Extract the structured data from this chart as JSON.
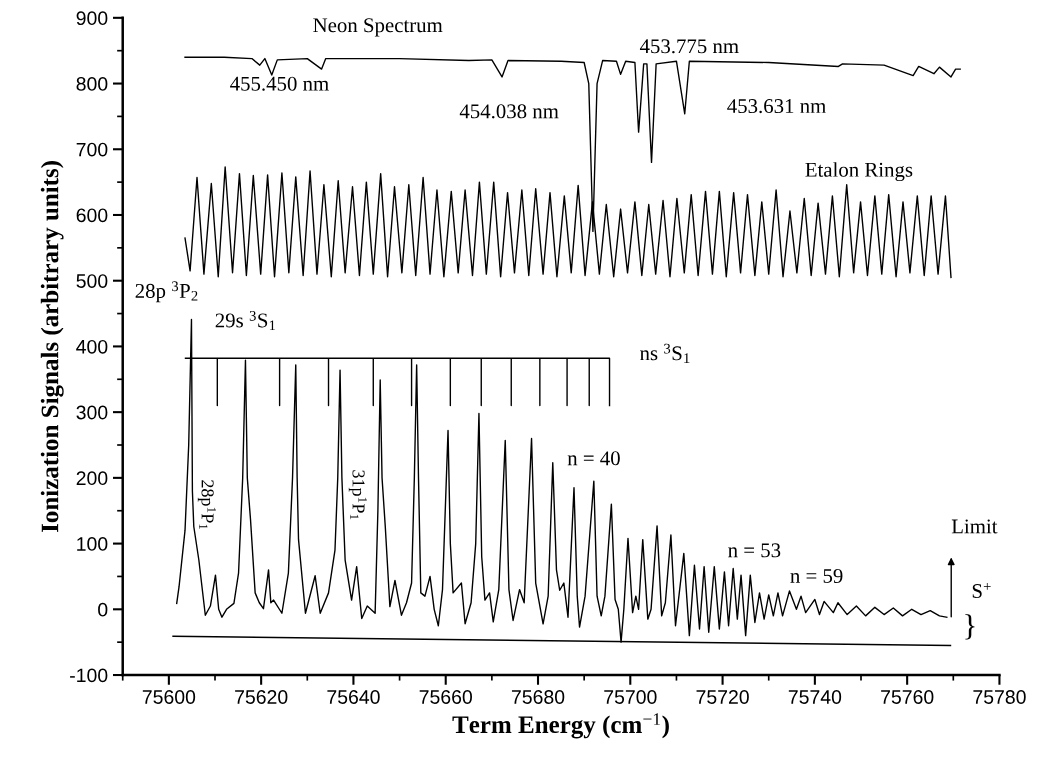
{
  "chart_data": {
    "type": "line",
    "xlabel": "Term Energy (cm$^{−1}$)",
    "ylabel": "Ionization Signals (arbitrary units)",
    "xlim": [
      75590,
      75780
    ],
    "ylim": [
      -100,
      900
    ],
    "xticks": [
      75600,
      75620,
      75640,
      75660,
      75680,
      75700,
      75720,
      75740,
      75760,
      75780
    ],
    "yticks": [
      -100,
      0,
      100,
      200,
      300,
      400,
      500,
      600,
      700,
      800,
      900
    ],
    "series": [
      {
        "color": "#000000",
        "x": [
          75603.5,
          75612,
          75618,
          75619.7,
          75620.8,
          75622.3,
          75623.5,
          75630,
          75633.1,
          75634,
          75650,
          75665,
          75670,
          75672.2,
          75673.5,
          75685,
          75690,
          75691,
          75691.9,
          75692.8,
          75694,
          75697,
          75697.9,
          75699,
          75701,
          75701.8,
          75702.9,
          75703.6,
          75704.6,
          75705.6,
          75710,
          75711.8,
          75712.8,
          75730,
          75745.1,
          75746,
          75755,
          75761.3,
          75762.5,
          75765.8,
          75767,
          75769.5,
          75770.5,
          75771.5
        ],
        "values": [
          840,
          840,
          838,
          828,
          838,
          813,
          836,
          838,
          822,
          838,
          838,
          835,
          836,
          810,
          835,
          834,
          832,
          800,
          575,
          800,
          835,
          834,
          814,
          834,
          832,
          726,
          830,
          830,
          680,
          830,
          834,
          754,
          834,
          832,
          826,
          830,
          828,
          812,
          826,
          815,
          825,
          810,
          822,
          822
        ]
      },
      {
        "color": "#000000",
        "x": [
          75603.5,
          75604.6,
          75606.1,
          75607.6,
          75609.2,
          75610.7,
          75612.2,
          75613.8,
          75615.3,
          75616.8,
          75618.3,
          75619.9,
          75621.4,
          75622.9,
          75624.5,
          75626.0,
          75627.5,
          75629.1,
          75630.6,
          75632.1,
          75633.6,
          75635.2,
          75636.7,
          75638.2,
          75639.8,
          75641.3,
          75642.8,
          75644.3,
          75645.9,
          75647.4,
          75648.9,
          75650.5,
          75652.0,
          75653.5,
          75655.1,
          75656.6,
          75658.1,
          75659.6,
          75661.2,
          75662.7,
          75664.2,
          75665.8,
          75667.3,
          75668.8,
          75670.4,
          75671.9,
          75673.4,
          75674.9,
          75676.5,
          75678.0,
          75679.5,
          75681.1,
          75682.6,
          75684.1,
          75685.7,
          75687.2,
          75688.7,
          75690.2,
          75691.8,
          75693.3,
          75694.8,
          75696.4,
          75697.9,
          75699.4,
          75701.0,
          75702.5,
          75704.0,
          75705.5,
          75707.1,
          75708.6,
          75710.1,
          75711.7,
          75713.2,
          75714.7,
          75716.3,
          75717.8,
          75719.3,
          75720.8,
          75722.4,
          75723.9,
          75725.4,
          75727.0,
          75728.5,
          75730.0,
          75731.6,
          75733.1,
          75734.6,
          75736.1,
          75737.7,
          75739.2,
          75740.7,
          75742.3,
          75743.8,
          75745.3,
          75746.9,
          75748.4,
          75749.9,
          75751.4,
          75753.0,
          75754.5,
          75756.0,
          75757.6,
          75759.1,
          75760.6,
          75762.2,
          75763.7,
          75765.2,
          75766.7,
          75768.3,
          75769.5
        ],
        "values": [
          565,
          515,
          657,
          510,
          648,
          506,
          673,
          512,
          663,
          508,
          660,
          510,
          661,
          506,
          664,
          512,
          658,
          508,
          667,
          510,
          646,
          506,
          652,
          512,
          643,
          508,
          650,
          510,
          663,
          506,
          643,
          512,
          646,
          508,
          657,
          510,
          638,
          506,
          636,
          512,
          638,
          508,
          650,
          510,
          650,
          506,
          634,
          512,
          638,
          508,
          640,
          510,
          634,
          506,
          629,
          512,
          645,
          508,
          620,
          510,
          616,
          506,
          609,
          512,
          620,
          508,
          616,
          510,
          622,
          506,
          625,
          512,
          631,
          508,
          636,
          510,
          636,
          506,
          634,
          512,
          631,
          508,
          620,
          510,
          638,
          506,
          606,
          512,
          625,
          508,
          618,
          510,
          629,
          506,
          646,
          512,
          620,
          508,
          629,
          510,
          631,
          506,
          620,
          512,
          629,
          508,
          629,
          510,
          629,
          505
        ]
      },
      {
        "color": "#000000",
        "x": [
          75601.7,
          75602.2,
          75603.5,
          75604.3,
          75604.9,
          75605.1,
          75605.4,
          75606.5,
          75607.9,
          75609.0,
          75610.1,
          75610.8,
          75611.5,
          75612.5,
          75614.1,
          75615.1,
          75616.0,
          75616.6,
          75617.0,
          75617.7,
          75618.7,
          75619.6,
          75620.5,
          75621.6,
          75622.1,
          75622.7,
          75624.5,
          75625.9,
          75626.8,
          75627.5,
          75627.8,
          75628.1,
          75629.6,
          75631.7,
          75632.8,
          75634.6,
          75636.0,
          75636.6,
          75637.1,
          75637.5,
          75638.2,
          75639.6,
          75640.7,
          75641.8,
          75643.0,
          75644.7,
          75645.3,
          75645.8,
          75646.2,
          75646.9,
          75647.9,
          75649.0,
          75650.4,
          75651.5,
          75652.6,
          75653.2,
          75653.7,
          75654.1,
          75654.6,
          75655.5,
          75656.6,
          75657.5,
          75658.4,
          75659.3,
          75660.5,
          75661.0,
          75661.6,
          75663.4,
          75664.2,
          75665.5,
          75666.5,
          75667.2,
          75667.8,
          75668.5,
          75669.5,
          75670.3,
          75671.5,
          75672.9,
          75673.7,
          75674.6,
          75676.0,
          75677.0,
          75678.6,
          75679.5,
          75681.1,
          75682.2,
          75683.2,
          75684.0,
          75684.7,
          75685.6,
          75686.5,
          75687.8,
          75688.5,
          75689.0,
          75690.2,
          75692.1,
          75692.8,
          75693.7,
          75694.5,
          75695.9,
          75696.7,
          75697.4,
          75698.0,
          75698.6,
          75699.5,
          75700.5,
          75701.2,
          75701.8,
          75702.7,
          75703.8,
          75704.5,
          75705.8,
          75706.8,
          75707.6,
          75708.8,
          75709.8,
          75711.6,
          75712.8,
          75713.9,
          75715.0,
          75716.0,
          75717.0,
          75718.2,
          75719.3,
          75720.4,
          75721.3,
          75722.3,
          75723.2,
          75724.0,
          75725.0,
          75726.0,
          75727.0,
          75728.0,
          75729.0,
          75730.0,
          75731.0,
          75732.0,
          75733.0,
          75734.5,
          75736.0,
          75737.0,
          75738.0,
          75740.0,
          75741.0,
          75742.0,
          75744.0,
          75745.0,
          75747.0,
          75749.0,
          75751.0,
          75753.0,
          75755.0,
          75757.0,
          75759.0,
          75761.0,
          75763.0,
          75765.0,
          75767.0,
          75768.6
        ],
        "values": [
          9,
          34,
          120,
          250,
          441,
          180,
          126,
          75,
          -9,
          5,
          52,
          0,
          -12,
          0,
          9,
          55,
          200,
          379,
          200,
          136,
          25,
          10,
          1,
          60,
          10,
          14,
          -6,
          55,
          200,
          372,
          200,
          106,
          -6,
          51,
          -6,
          25,
          90,
          200,
          364,
          200,
          75,
          14,
          65,
          -14,
          5,
          -6,
          150,
          349,
          200,
          126,
          4,
          44,
          -9,
          10,
          40,
          200,
          372,
          200,
          25,
          20,
          50,
          0,
          -25,
          30,
          272,
          100,
          25,
          40,
          -22,
          10,
          100,
          298,
          80,
          14,
          25,
          -19,
          30,
          257,
          30,
          -17,
          30,
          10,
          260,
          40,
          -22,
          20,
          223,
          60,
          29,
          40,
          -12,
          185,
          20,
          -27,
          20,
          195,
          20,
          -10,
          20,
          160,
          15,
          0,
          -50,
          0,
          108,
          -5,
          20,
          0,
          106,
          -15,
          0,
          127,
          -10,
          10,
          113,
          -25,
          85,
          -40,
          67,
          -30,
          65,
          -35,
          65,
          -30,
          57,
          -25,
          62,
          -15,
          52,
          -40,
          52,
          -20,
          25,
          -15,
          22,
          -10,
          25,
          -10,
          28,
          0,
          20,
          -5,
          15,
          -8,
          12,
          -5,
          10,
          -8,
          5,
          -10,
          3,
          -8,
          2,
          -10,
          0,
          -8,
          -2,
          -10,
          -12
        ]
      },
      {
        "color": "#000000",
        "x": [
          75603.6,
          75610.5,
          75610.5,
          75610.5,
          75624.0,
          75624.0,
          75624.0,
          75634.6,
          75634.6,
          75634.6,
          75644.3,
          75644.3,
          75644.3,
          75652.6,
          75652.6,
          75652.6,
          75661.0,
          75661.0,
          75661.0,
          75667.7,
          75667.7,
          75667.7,
          75674.2,
          75674.2,
          75674.2,
          75680.4,
          75680.4,
          75680.4,
          75686.3,
          75686.3,
          75686.3,
          75691.1,
          75691.1,
          75691.1,
          75695.5,
          75695.5
        ],
        "values": [
          382,
          382,
          310,
          382,
          382,
          310,
          382,
          382,
          310,
          382,
          382,
          310,
          382,
          382,
          310,
          382,
          382,
          310,
          382,
          382,
          310,
          382,
          382,
          310,
          382,
          382,
          310,
          382,
          382,
          310,
          382,
          382,
          310,
          382,
          382,
          310
        ]
      },
      {
        "color": "#000000",
        "x": [
          75600.9,
          75769.4
        ],
        "values": [
          -41,
          -55
        ]
      }
    ],
    "annotations": [
      "Neon Spectrum",
      "455.450 nm",
      "454.038 nm",
      "453.775 nm",
      "453.631 nm",
      "Etalon Rings",
      "28p $^{3}$P$_{2}$",
      "29s $^{3}$S$_{1}$",
      "28p$^{1}$P$_{1}$",
      "31p$^{1}$P$_{1}$",
      "ns $^{3}$S$_{1}$",
      "n = 40",
      "n = 53",
      "n = 59",
      "Limit",
      "S$^{+}$",
      "}"
    ]
  }
}
